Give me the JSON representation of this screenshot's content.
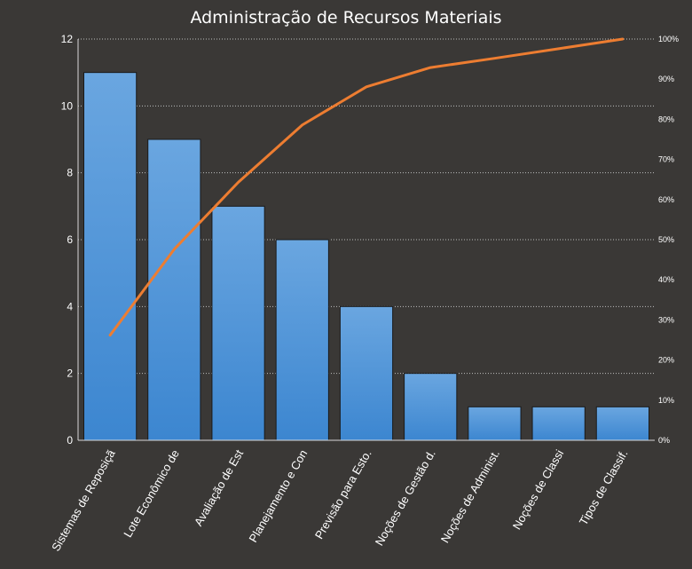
{
  "chart_data": {
    "type": "bar",
    "title": "Administração de Recursos Materiais",
    "categories": [
      "Sistemas de Reposiçã",
      "Lote Econômico de",
      "Avaliação de Est",
      "Planejamento e Con",
      "Previsão para Esto.",
      "Noções de Gestão d.",
      "Noções de Administ.",
      "Noções de Classi",
      "Tipos de Classif."
    ],
    "series": [
      {
        "type": "bar",
        "values": [
          11,
          9,
          7,
          6,
          4,
          2,
          1,
          1,
          1
        ]
      },
      {
        "type": "line",
        "axis": "secondary",
        "values": [
          26.2,
          47.6,
          64.3,
          78.6,
          88.1,
          92.9,
          95.2,
          97.6,
          100
        ]
      }
    ],
    "ylim": [
      0,
      12
    ],
    "yticks": [
      0,
      2,
      4,
      6,
      8,
      10,
      12
    ],
    "y2lim": [
      0,
      100
    ],
    "y2ticks": [
      "0%",
      "10%",
      "20%",
      "30%",
      "40%",
      "50%",
      "60%",
      "70%",
      "80%",
      "90%",
      "100%"
    ],
    "grid": true,
    "legend": "none",
    "colors": {
      "background": "#3a3836",
      "bar": "#4a90d9",
      "line": "#ed7d31",
      "text": "#ffffff",
      "grid": "#bfbfbf"
    }
  }
}
